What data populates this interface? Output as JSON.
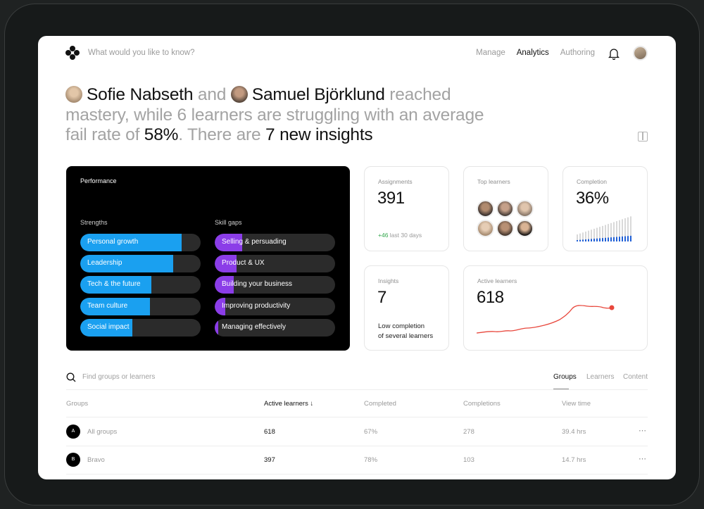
{
  "search": {
    "placeholder": "What would you like to know?"
  },
  "nav": [
    "Manage",
    "Analytics",
    "Authoring"
  ],
  "headline": {
    "name1": "Sofie Nabseth",
    "and": " and ",
    "name2": "Samuel Björklund",
    "reached": " reached mastery, while 6 learners are struggling with an average fail rate of ",
    "rate": "58%",
    "there": ". There are ",
    "insights": "7 new insights"
  },
  "performance": {
    "title": "Performance",
    "strengths_title": "Strengths",
    "gaps_title": "Skill gaps",
    "strengths": [
      {
        "label": "Personal growth",
        "value": 0.84
      },
      {
        "label": "Leadership",
        "value": 0.77
      },
      {
        "label": "Tech & the future",
        "value": 0.59
      },
      {
        "label": "Team culture",
        "value": 0.58
      },
      {
        "label": "Social impact",
        "value": 0.43
      }
    ],
    "gaps": [
      {
        "label": "Selling & persuading",
        "value": 0.23
      },
      {
        "label": "Product & UX",
        "value": 0.18
      },
      {
        "label": "Building your business",
        "value": 0.16
      },
      {
        "label": "Improving productivity",
        "value": 0.09
      },
      {
        "label": "Managing effectively",
        "value": 0.03
      }
    ],
    "strength_color": "#1aa0f0",
    "gap_color": "#8b3de8"
  },
  "cards": {
    "assignments": {
      "title": "Assignments",
      "value": "391",
      "delta": "+46",
      "delta_text": " last 30 days"
    },
    "top_learners": {
      "title": "Top learners"
    },
    "completion": {
      "title": "Completion",
      "value": "36%"
    },
    "insights": {
      "title": "Insights",
      "value": "7",
      "desc1": "Low completion",
      "desc2": "of several learners"
    },
    "active": {
      "title": "Active learners",
      "value": "618"
    }
  },
  "table": {
    "search_placeholder": "Find groups or learners",
    "tabs": [
      "Groups",
      "Learners",
      "Content"
    ],
    "headers": [
      "Groups",
      "Active learners",
      "Completed",
      "Completions",
      "View time"
    ],
    "rows": [
      {
        "badge": "A",
        "name": "All groups",
        "active": "618",
        "completed": "67%",
        "completions": "278",
        "time": "39.4 hrs"
      },
      {
        "badge": "B",
        "name": "Bravo",
        "active": "397",
        "completed": "78%",
        "completions": "103",
        "time": "14.7 hrs"
      }
    ]
  }
}
